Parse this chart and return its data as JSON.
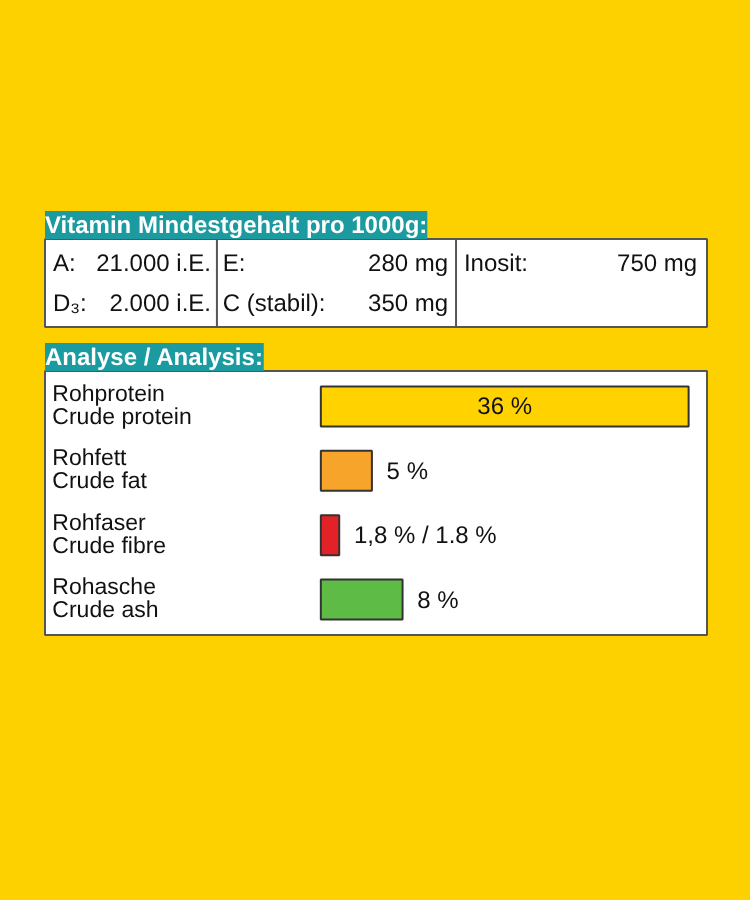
{
  "chart_data": [
    {
      "type": "other",
      "title": "Vitamin Mindestgehalt pro 1000g:",
      "annotations": [
        "A:",
        "21.000 i.E.",
        "E:",
        "280 mg",
        "Inosit:",
        "750 mg",
        "D₃:",
        "2.000 i.E.",
        "C (stabil):",
        "350 mg"
      ]
    },
    {
      "type": "bar",
      "orientation": "horizontal",
      "title": "Analyse / Analysis:",
      "categories": [
        "Rohprotein\nCrude protein",
        "Rohfett\nCrude fat",
        "Rohfaser\nCrude fibre",
        "Rohasche\nCrude ash"
      ],
      "values": [
        36,
        5,
        1.8,
        8
      ],
      "colors": [
        "#ffd200",
        "#f7a52a",
        "#e32227",
        "#5dbb46"
      ],
      "value_labels": [
        "36 %",
        "5 %",
        "1,8 % / 1.8 %",
        "8 %"
      ]
    }
  ]
}
